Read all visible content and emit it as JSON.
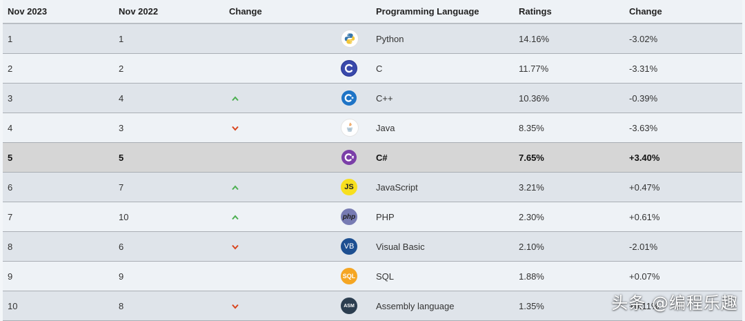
{
  "headers": {
    "nov2023": "Nov 2023",
    "nov2022": "Nov 2022",
    "change": "Change",
    "language": "Programming Language",
    "ratings": "Ratings",
    "change_pct": "Change"
  },
  "rows": [
    {
      "rank2023": "1",
      "rank2022": "1",
      "trend": "none",
      "logo": "python-logo-icon",
      "language": "Python",
      "ratings": "14.16%",
      "change": "-3.02%"
    },
    {
      "rank2023": "2",
      "rank2022": "2",
      "trend": "none",
      "logo": "c-logo-icon",
      "language": "C",
      "ratings": "11.77%",
      "change": "-3.31%"
    },
    {
      "rank2023": "3",
      "rank2022": "4",
      "trend": "up",
      "logo": "cpp-logo-icon",
      "language": "C++",
      "ratings": "10.36%",
      "change": "-0.39%"
    },
    {
      "rank2023": "4",
      "rank2022": "3",
      "trend": "down",
      "logo": "java-logo-icon",
      "language": "Java",
      "ratings": "8.35%",
      "change": "-3.63%"
    },
    {
      "rank2023": "5",
      "rank2022": "5",
      "trend": "none",
      "logo": "csharp-logo-icon",
      "language": "C#",
      "ratings": "7.65%",
      "change": "+3.40%"
    },
    {
      "rank2023": "6",
      "rank2022": "7",
      "trend": "up",
      "logo": "javascript-logo-icon",
      "language": "JavaScript",
      "ratings": "3.21%",
      "change": "+0.47%"
    },
    {
      "rank2023": "7",
      "rank2022": "10",
      "trend": "up",
      "logo": "php-logo-icon",
      "language": "PHP",
      "ratings": "2.30%",
      "change": "+0.61%"
    },
    {
      "rank2023": "8",
      "rank2022": "6",
      "trend": "down",
      "logo": "visual-basic-logo-icon",
      "language": "Visual Basic",
      "ratings": "2.10%",
      "change": "-2.01%"
    },
    {
      "rank2023": "9",
      "rank2022": "9",
      "trend": "none",
      "logo": "sql-logo-icon",
      "language": "SQL",
      "ratings": "1.88%",
      "change": "+0.07%"
    },
    {
      "rank2023": "10",
      "rank2022": "8",
      "trend": "down",
      "logo": "assembly-logo-icon",
      "language": "Assembly language",
      "ratings": "1.35%",
      "change": "+0.11%"
    }
  ],
  "logo_texts": {
    "js": "JS",
    "php": "php",
    "vb": "VB",
    "sql": "SQL",
    "asm": "ASM"
  },
  "colors": {
    "up": "#4caf50",
    "down": "#d9441c",
    "highlight_row": "#d6d6d6"
  },
  "watermark": "头条 @编程乐趣"
}
